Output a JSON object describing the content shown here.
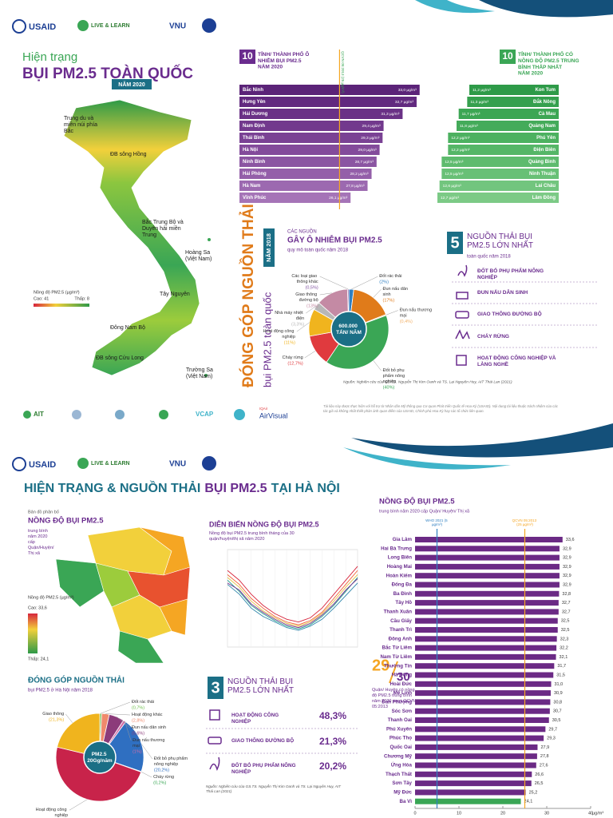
{
  "header": {
    "logos": [
      "USAID",
      "LIVE & LEARN",
      "VNU"
    ]
  },
  "national": {
    "title_small": "Hiện trạng",
    "title_large": "BỤI PM2.5 TOÀN QUỐC",
    "year": "NĂM 2020",
    "map": {
      "regions": [
        "Trung du và miền núi phía Bắc",
        "ĐB sông Hồng",
        "Bắc Trung Bộ và Duyên hải miền Trung",
        "Tây Nguyên",
        "Đông Nam Bộ",
        "ĐB sông Cửu Long"
      ],
      "islands": [
        "Hoàng Sa (Việt Nam)",
        "Trường Sa (Việt Nam)"
      ],
      "legend_title": "Nồng độ PM2.5 (µg/m³)",
      "legend_high": "Cao: 41",
      "legend_low": "Thấp: 8"
    },
    "vertical_title": "ĐÓNG GÓP NGUỒN THẢI",
    "vertical_subtitle": "bụi PM2.5 toàn quốc",
    "vertical_year": "NĂM 2018",
    "top_sources": {
      "number": "5",
      "title": "NGUỒN THẢI BỤI PM2.5 LỚN NHẤT",
      "subtitle": "toàn quốc năm 2018",
      "items": [
        "ĐỐT BỎ PHỤ PHẨM NÔNG NGHIỆP",
        "ĐUN NẤU DÂN SINH",
        "GIAO THÔNG ĐƯỜNG BỘ",
        "CHÁY RỪNG",
        "HOẠT ĐỘNG CÔNG NGHIỆP VÀ LÀNG NGHỀ"
      ]
    },
    "source": "Nguồn: Nghiên cứu của GS.TS. Nguyễn Thị Kim Oanh và TS. Lại Nguyên Huy, AIT Thái Lan (2021)",
    "partner_logos": [
      "AIT",
      "VCAP",
      "IQAir",
      "AirVisual"
    ],
    "disclaimer": "Tài liệu này được thực hiện với hỗ trợ từ Nhân dân Mỹ thông qua Cơ quan Phát triển Quốc tế Hoa Kỳ (USAID). Nội dung tài liệu thuộc trách nhiệm của các tác giả và không nhất thiết phản ánh quan điểm của USAID, Chính phủ Hoa Kỳ hay các tổ chức liên quan."
  },
  "hanoi": {
    "title_prefix": "HIỆN TRẠNG & NGUỒN THẢI",
    "title_highlight": "BỤI PM2.5",
    "title_suffix": "TẠI HÀ NỘI",
    "map": {
      "kicker": "Bản đồ phân bố",
      "title": "NỒNG ĐỘ BỤI PM2.5",
      "subtitle": "trung bình năm 2020 cấp Quận/Huyện/ Thị xã",
      "legend_title": "Nồng độ PM2.5 (µg/m³)",
      "legend_high": "Cao: 33,6",
      "legend_low": "Thấp: 24,1"
    },
    "exceed": {
      "count": "29",
      "total": "30",
      "text": "Quận/ Huyện có nồng độ PM2.5 trung bình năm 2020 vượt QCVN 05:2013"
    },
    "top_sources": {
      "number": "3",
      "title": "NGUỒN THẢI BỤI PM2.5 LỚN NHẤT",
      "items": [
        {
          "label": "HOẠT ĐỘNG CÔNG NGHIỆP",
          "value": "48,3%"
        },
        {
          "label": "GIAO THÔNG ĐƯỜNG BỘ",
          "value": "21,3%"
        },
        {
          "label": "ĐỐT BỎ PHỤ PHẨM NÔNG NGHIỆP",
          "value": "20,2%"
        }
      ]
    },
    "source": "Nguồn: Nghiên cứu của GS.TS. Nguyễn Thị Kim Oanh và TS. Lại Nguyên Huy, AIT Thái Lan (2021)"
  },
  "chart_data": [
    {
      "type": "hbar",
      "title_number": "10",
      "title": "TỈNH/ THÀNH PHỐ Ô NHIỄM BỤI PM2.5",
      "subtitle": "NĂM 2020",
      "categories": [
        "Bắc Ninh",
        "Hưng Yên",
        "Hải Dương",
        "Nam Định",
        "Thái Bình",
        "Hà Nội",
        "Ninh Bình",
        "Hải Phòng",
        "Hà Nam",
        "Vĩnh Phúc"
      ],
      "values": [
        33.0,
        32.7,
        31.3,
        29.4,
        29.3,
        29.0,
        28.7,
        28.2,
        27.8,
        26.1
      ],
      "value_labels": [
        "33,0 µg/m³",
        "32,7 µg/m³",
        "31,3 µg/m³",
        "29,4 µg/m³",
        "29,3 µg/m³",
        "29,0 µg/m³",
        "28,7 µg/m³",
        "28,2 µg/m³",
        "27,8 µg/m³",
        "26,1 µg/m³"
      ],
      "colors": [
        "#5b2378",
        "#62297f",
        "#6a3186",
        "#72398d",
        "#7a4294",
        "#834b9b",
        "#8b55a2",
        "#945fa9",
        "#9c69b0",
        "#a574b7"
      ],
      "xlim": [
        15,
        33.5
      ],
      "reference_lines": [
        {
          "value": 25,
          "label": "QCVN 05:2013 (25 µg/m³)",
          "color": "#f5a623"
        }
      ]
    },
    {
      "type": "hbar",
      "xreverse": true,
      "title_number": "10",
      "title": "TỈNH/ THÀNH PHỐ CÓ NỒNG ĐỘ PM2.5 TRUNG BÌNH THẤP NHẤT",
      "subtitle": "NĂM 2020",
      "categories": [
        "Kon Tum",
        "Đắk Nông",
        "Cà Mau",
        "Quảng Nam",
        "Phú Yên",
        "Điện Biên",
        "Quảng Bình",
        "Ninh Thuận",
        "Lai Châu",
        "Lâm Đồng"
      ],
      "values": [
        11.2,
        11.3,
        11.7,
        11.8,
        12.2,
        12.2,
        12.5,
        12.5,
        12.6,
        12.7
      ],
      "value_labels": [
        "11,2 µg/m³",
        "11,3 µg/m³",
        "11,7 µg/m³",
        "11,8 µg/m³",
        "12,2 µg/m³",
        "12,2 µg/m³",
        "12,5 µg/m³",
        "12,5 µg/m³",
        "12,6 µg/m³",
        "12,7 µg/m³"
      ],
      "colors": [
        "#2e9a48",
        "#35a04e",
        "#3ca654",
        "#44ab5a",
        "#4cb160",
        "#55b667",
        "#5ebb6e",
        "#68c076",
        "#72c57e",
        "#7cca86"
      ],
      "xlim": [
        7,
        13
      ]
    },
    {
      "type": "pie",
      "kicker": "CÁC NGUỒN",
      "title": "GÂY Ô NHIỄM BỤI PM2.5",
      "subtitle": "quy mô toàn quốc năm 2018",
      "center_label": "600.000 TẤN/ NĂM",
      "categories": [
        "Đốt rác thải",
        "Đun nấu dân sinh",
        "Đun nấu thương mại",
        "Đốt bỏ phụ phẩm nông nghiệp",
        "Cháy rừng",
        "Hoạt động công nghiệp",
        "Nhà máy nhiệt điện",
        "Giao thông đường bộ",
        "Các loại giao thông khác"
      ],
      "values": [
        2,
        17,
        0.4,
        40,
        12.7,
        11,
        3.3,
        13,
        0.5
      ],
      "value_labels": [
        "(2%)",
        "(17%)",
        "(0,4%)",
        "(40%)",
        "(12,7%)",
        "(11%)",
        "(3,3%)",
        "(13%)",
        "(0,5%)"
      ],
      "colors": [
        "#2f7fc1",
        "#e07b1a",
        "#f2b36b",
        "#3aa655",
        "#e03a3e",
        "#f0b41e",
        "#b7b7b7",
        "#c48aa4",
        "#7e4f9e"
      ]
    },
    {
      "type": "line",
      "title": "DIỄN BIẾN NỒNG ĐỘ BỤI PM2.5",
      "subtitle": "Nồng độ bụi PM2.5 trung bình tháng của 30 quận/huyện/thị xã năm 2020",
      "categories": [
        null,
        null,
        null,
        null,
        null,
        null,
        null,
        null,
        null,
        null,
        null,
        null
      ],
      "ylim": [
        0,
        70
      ],
      "series": [
        {
          "color": "#d7263d",
          "values": [
            55,
            48,
            38,
            30,
            24,
            20,
            18,
            21,
            28,
            38,
            48,
            58
          ]
        },
        {
          "color": "#f46036",
          "values": [
            52,
            45,
            35,
            28,
            22,
            18,
            16,
            19,
            25,
            35,
            45,
            55
          ]
        },
        {
          "color": "#e2c044",
          "values": [
            50,
            43,
            33,
            26,
            21,
            17,
            15,
            18,
            24,
            33,
            43,
            52
          ]
        },
        {
          "color": "#1b998b",
          "values": [
            48,
            40,
            30,
            24,
            19,
            15,
            13,
            16,
            22,
            30,
            40,
            50
          ]
        },
        {
          "color": "#2e86ab",
          "values": [
            45,
            38,
            28,
            22,
            18,
            14,
            12,
            15,
            20,
            28,
            37,
            46
          ]
        },
        {
          "color": "#7b2d8e",
          "values": [
            46,
            41,
            31,
            25,
            20,
            16,
            14,
            17,
            23,
            31,
            41,
            49
          ]
        }
      ]
    },
    {
      "type": "pie",
      "title": "ĐÓNG GÓP NGUỒN THẢI",
      "subtitle": "bụi PM2.5 ở Hà Nội năm 2018",
      "center_label": "PM2.5 20Gg/năm",
      "categories": [
        "Đốt rác thải",
        "Hoạt động khác",
        "Đun nấu dân sinh",
        "Đun nấu thương mại",
        "Đốt bỏ phụ phẩm nông nghiệp",
        "Cháy rừng",
        "Hoạt động công nghiệp",
        "Giao thông"
      ],
      "values": [
        0.7,
        2.8,
        5.6,
        1,
        20.2,
        0.2,
        48.3,
        21.3
      ],
      "value_labels": [
        "(0,7%)",
        "(2,8%)",
        "(5,6%)",
        "(1%)",
        "(20,2%)",
        "(0,2%)",
        "(48,3%)",
        "(21,3%)"
      ],
      "colors": [
        "#6cbf4a",
        "#f08a6c",
        "#8c3b7a",
        "#d36ea8",
        "#2f6fc1",
        "#3aa655",
        "#c8234a",
        "#f0b41e"
      ]
    },
    {
      "type": "hbar",
      "title": "NỒNG ĐỘ BỤI PM2.5",
      "subtitle": "trung bình năm 2020 cấp Quận/ Huyện/ Thị xã",
      "categories": [
        "Gia Lâm",
        "Hai Bà Trưng",
        "Long Biên",
        "Hoàng Mai",
        "Hoàn Kiếm",
        "Đống Đa",
        "Ba Đình",
        "Tây Hồ",
        "Thanh Xuân",
        "Cầu Giấy",
        "Thanh Trì",
        "Đông Anh",
        "Bắc Từ Liêm",
        "Nam Từ Liêm",
        "Thường Tín",
        "Hà Đông",
        "Hoài Đức",
        "Mê Linh",
        "Đan Phượng",
        "Sóc Sơn",
        "Thanh Oai",
        "Phú Xuyên",
        "Phúc Thọ",
        "Quốc Oai",
        "Chương Mỹ",
        "Ứng Hòa",
        "Thạch Thất",
        "Sơn Tây",
        "Mỹ Đức",
        "Ba Vì"
      ],
      "values": [
        33.6,
        32.9,
        32.9,
        32.9,
        32.9,
        32.9,
        32.8,
        32.7,
        32.7,
        32.5,
        32.5,
        32.3,
        32.2,
        32.1,
        31.7,
        31.5,
        31.0,
        30.9,
        30.8,
        30.7,
        30.5,
        29.7,
        29.3,
        27.9,
        27.8,
        27.6,
        26.6,
        26.5,
        25.2,
        24.1
      ],
      "value_labels": [
        "33,6",
        "32,9",
        "32,9",
        "32,9",
        "32,9",
        "32,9",
        "32,8",
        "32,7",
        "32,7",
        "32,5",
        "32,5",
        "32,3",
        "32,2",
        "32,1",
        "31,7",
        "31,5",
        "31,0",
        "30,9",
        "30,8",
        "30,7",
        "30,5",
        "29,7",
        "29,3",
        "27,9",
        "27,8",
        "27,6",
        "26,6",
        "26,5",
        "25,2",
        "24,1"
      ],
      "colors": [
        "#6b2a85",
        "#6b2a85",
        "#6b2a85",
        "#6b2a85",
        "#6b2a85",
        "#6b2a85",
        "#6b2a85",
        "#6b2a85",
        "#6b2a85",
        "#6b2a85",
        "#6b2a85",
        "#6b2a85",
        "#6b2a85",
        "#6b2a85",
        "#6b2a85",
        "#6b2a85",
        "#6b2a85",
        "#6b2a85",
        "#6b2a85",
        "#6b2a85",
        "#6b2a85",
        "#6b2a85",
        "#6b2a85",
        "#6b2a85",
        "#6b2a85",
        "#6b2a85",
        "#6b2a85",
        "#6b2a85",
        "#6b2a85",
        "#3aa655"
      ],
      "xlim": [
        0,
        40
      ],
      "xticks": [
        0,
        10,
        20,
        30,
        40
      ],
      "xlabel": "µg/m³",
      "reference_lines": [
        {
          "value": 5,
          "label": "WHO 2021 (5 µg/m³)",
          "color": "#2f7fc1"
        },
        {
          "value": 25,
          "label": "QCVN 05:2013 (25 µg/m³)",
          "color": "#f5a623"
        }
      ]
    }
  ]
}
